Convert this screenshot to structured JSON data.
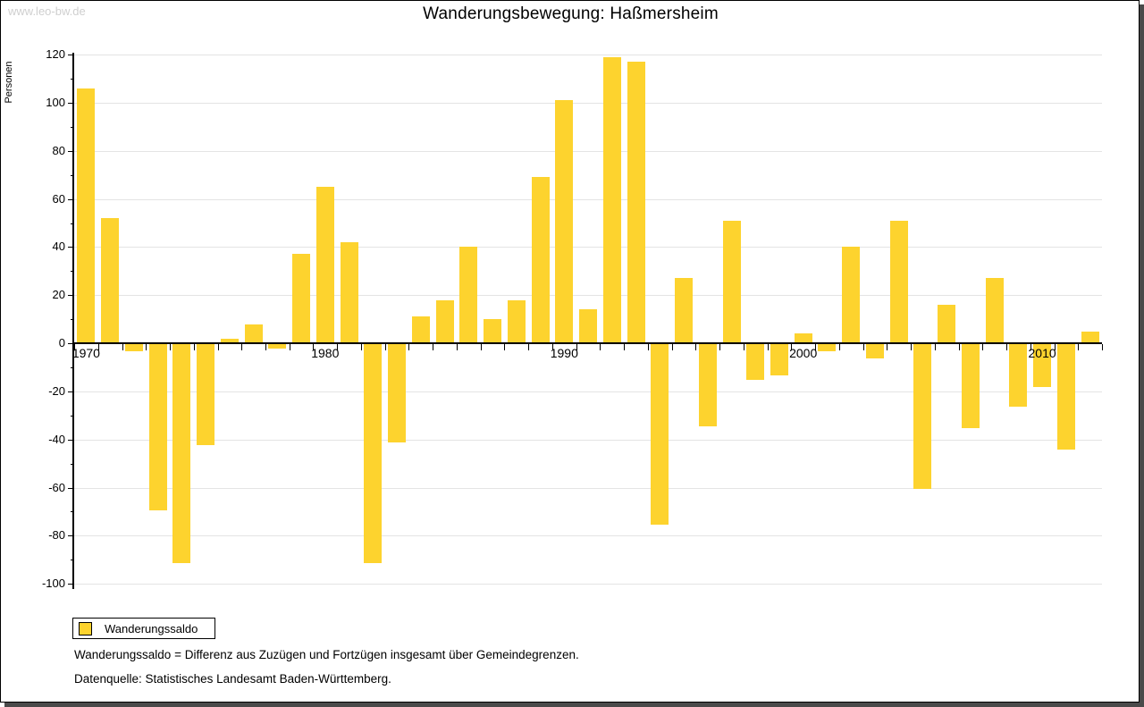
{
  "watermark": "www.leo-bw.de",
  "header": {
    "title": "Wanderungsbewegung: Haßmersheim"
  },
  "legend": {
    "label": "Wanderungssaldo",
    "swatch_color": "#FDD32E"
  },
  "footnotes": {
    "definition": "Wanderungssaldo = Differenz aus Zuzügen und Fortzügen insgesamt über Gemeindegrenzen.",
    "source": "Datenquelle: Statistisches Landesamt Baden-Württemberg."
  },
  "colors": {
    "bar": "#FDD32E",
    "gridline": "#e4e4e4",
    "axis": "#000000",
    "watermark": "#cfcfcf",
    "frame_shadow": "#4a4a4a"
  },
  "chart_data": {
    "type": "bar",
    "title": "Wanderungsbewegung: Haßmersheim",
    "xlabel": "",
    "ylabel": "Personen",
    "ylim": [
      -100,
      120
    ],
    "grid": true,
    "legend_position": "bottom-left",
    "x": [
      1970,
      1971,
      1972,
      1973,
      1974,
      1975,
      1976,
      1977,
      1978,
      1979,
      1980,
      1981,
      1982,
      1983,
      1984,
      1985,
      1986,
      1987,
      1988,
      1989,
      1990,
      1991,
      1992,
      1993,
      1994,
      1995,
      1996,
      1997,
      1998,
      1999,
      2000,
      2001,
      2002,
      2003,
      2004,
      2005,
      2006,
      2007,
      2008,
      2009,
      2010,
      2011,
      2012
    ],
    "series": [
      {
        "name": "Wanderungssaldo",
        "values": [
          106,
          52,
          -3,
          -69,
          -91,
          -42,
          2,
          8,
          -2,
          37,
          65,
          42,
          -91,
          -41,
          11,
          18,
          40,
          10,
          18,
          69,
          101,
          14,
          119,
          117,
          -75,
          27,
          -34,
          51,
          -15,
          -13,
          4,
          -3,
          40,
          -6,
          51,
          -60,
          16,
          -35,
          27,
          -26,
          -18,
          -44,
          5
        ]
      }
    ],
    "y_ticks": [
      120,
      100,
      80,
      60,
      40,
      20,
      0,
      -20,
      -40,
      -60,
      -80,
      -100
    ],
    "y_minor_ticks": [
      110,
      90,
      70,
      50,
      30,
      10,
      -10,
      -30,
      -50,
      -70,
      -90
    ],
    "x_tick_labels": [
      {
        "label": "1970",
        "slot": 0
      },
      {
        "label": "1980",
        "slot": 10
      },
      {
        "label": "1990",
        "slot": 20
      },
      {
        "label": "2000",
        "slot": 30
      },
      {
        "label": "2010",
        "slot": 40
      }
    ]
  }
}
